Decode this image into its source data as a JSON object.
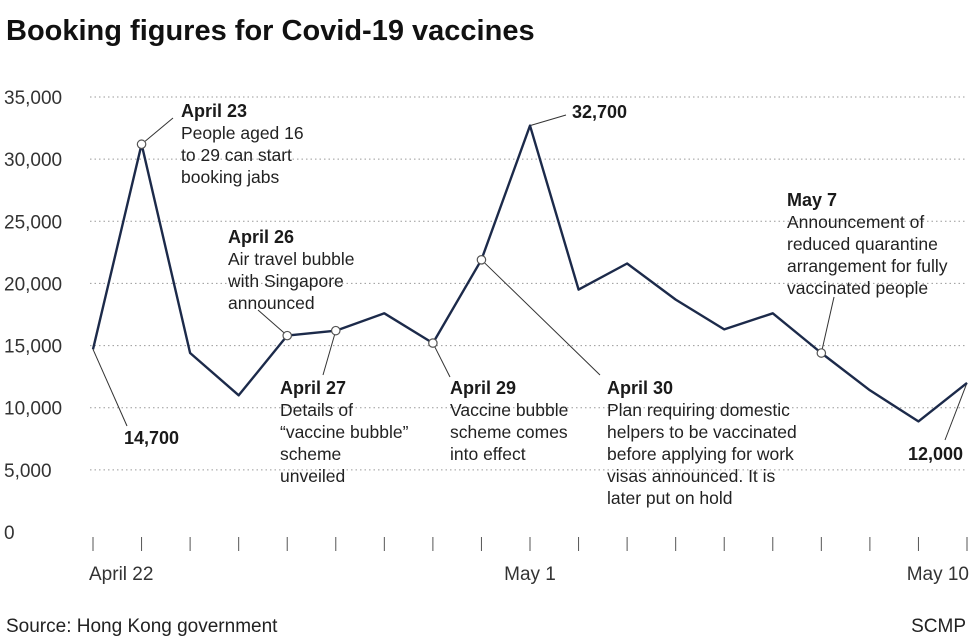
{
  "chart_data": {
    "type": "line",
    "title": "Booking figures for Covid-19 vaccines",
    "source": "Source: Hong Kong government",
    "credit": "SCMP",
    "ylim": [
      0,
      35000
    ],
    "yticks": [
      "0",
      "5,000",
      "10,000",
      "15,000",
      "20,000",
      "25,000",
      "30,000",
      "35,000"
    ],
    "ytick_values": [
      0,
      5000,
      10000,
      15000,
      20000,
      25000,
      30000,
      35000
    ],
    "x_labels": [
      {
        "index": 0,
        "label": "April 22"
      },
      {
        "index": 9,
        "label": "May 1"
      },
      {
        "index": 18,
        "label": "May 10"
      }
    ],
    "x": [
      "April 22",
      "April 23",
      "April 24",
      "April 25",
      "April 26",
      "April 27",
      "April 28",
      "April 29",
      "April 30",
      "May 1",
      "May 2",
      "May 3",
      "May 4",
      "May 5",
      "May 6",
      "May 7",
      "May 8",
      "May 9",
      "May 10"
    ],
    "series": [
      {
        "values": [
          14700,
          31200,
          14400,
          11000,
          15800,
          16200,
          17600,
          15200,
          21900,
          32700,
          19500,
          21600,
          18700,
          16300,
          17600,
          14400,
          11400,
          8900,
          12000
        ]
      }
    ],
    "value_labels": [
      {
        "index": 0,
        "text": "14,700"
      },
      {
        "index": 9,
        "text": "32,700"
      },
      {
        "index": 18,
        "text": "12,000"
      }
    ],
    "annotations": [
      {
        "index": 1,
        "date": "April 23",
        "lines": [
          "People aged 16",
          "to 29 can start",
          "booking jabs"
        ]
      },
      {
        "index": 4,
        "date": "April 26",
        "lines": [
          "Air travel bubble",
          "with Singapore",
          "announced"
        ]
      },
      {
        "index": 5,
        "date": "April 27",
        "lines": [
          "Details of",
          "“vaccine bubble”",
          "scheme",
          "unveiled"
        ]
      },
      {
        "index": 7,
        "date": "April 29",
        "lines": [
          "Vaccine bubble",
          "scheme comes",
          "into effect"
        ]
      },
      {
        "index": 8,
        "date": "April 30",
        "lines": [
          "Plan requiring domestic",
          "helpers to be vaccinated",
          "before applying for work",
          "visas announced. It is",
          "later put on hold"
        ]
      },
      {
        "index": 15,
        "date": "May 7",
        "lines": [
          "Announcement of",
          "reduced quarantine",
          "arrangement for fully",
          "vaccinated people"
        ]
      }
    ],
    "colors": {
      "line": "#1c2a4a",
      "grid": "#9a9a9a"
    },
    "grid": true
  }
}
